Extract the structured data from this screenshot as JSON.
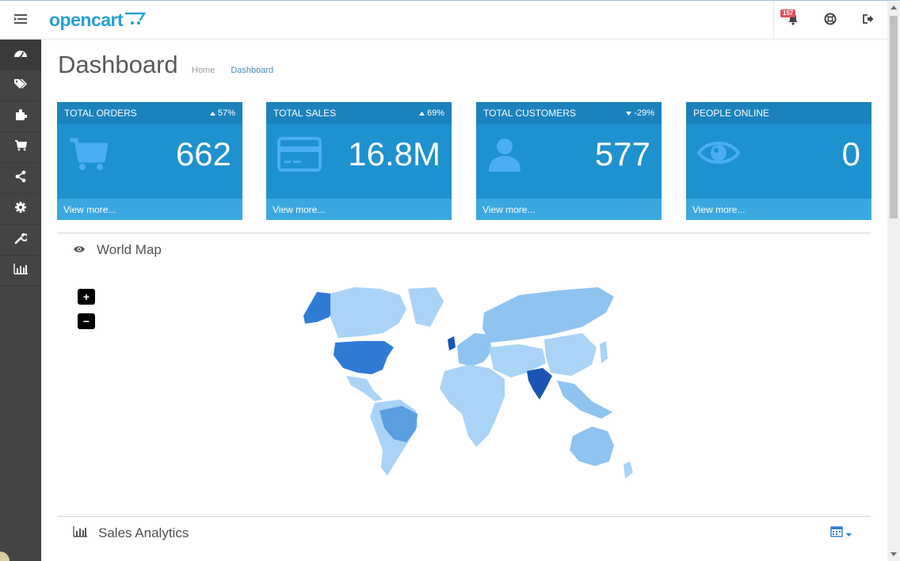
{
  "header": {
    "logo_text": "opencart",
    "notification_count": "157",
    "icons": [
      "menu-toggle-icon",
      "bell-icon",
      "help-lifebuoy-icon",
      "logout-icon"
    ]
  },
  "sidebar": {
    "items": [
      {
        "name": "dashboard",
        "icon": "dashboard-icon"
      },
      {
        "name": "catalog",
        "icon": "tags-icon"
      },
      {
        "name": "extensions",
        "icon": "puzzle-icon"
      },
      {
        "name": "sales",
        "icon": "cart-icon"
      },
      {
        "name": "marketing",
        "icon": "share-icon"
      },
      {
        "name": "system",
        "icon": "gear-icon"
      },
      {
        "name": "tools",
        "icon": "wrench-icon"
      },
      {
        "name": "reports",
        "icon": "bar-chart-icon"
      }
    ]
  },
  "page": {
    "title": "Dashboard",
    "breadcrumb": [
      "Home",
      "Dashboard"
    ]
  },
  "tiles": [
    {
      "title": "TOTAL ORDERS",
      "change": "57%",
      "direction": "up",
      "value": "662",
      "footer": "View more...",
      "icon": "cart-icon"
    },
    {
      "title": "TOTAL SALES",
      "change": "69%",
      "direction": "up",
      "value": "16.8M",
      "footer": "View more...",
      "icon": "credit-card-icon"
    },
    {
      "title": "TOTAL CUSTOMERS",
      "change": "-29%",
      "direction": "down",
      "value": "577",
      "footer": "View more...",
      "icon": "user-icon"
    },
    {
      "title": "PEOPLE ONLINE",
      "change": "",
      "direction": "",
      "value": "0",
      "footer": "View more...",
      "icon": "eye-icon"
    }
  ],
  "world_map": {
    "title": "World Map",
    "zoom_in": "+",
    "zoom_out": "−"
  },
  "sales_analytics": {
    "title": "Sales Analytics"
  },
  "colors": {
    "tile_bg": "#1e91cf",
    "tile_head": "#1a82bc",
    "tile_foot": "#3aa7e0",
    "sidebar": "#444444",
    "map_light": "#a9d3f7",
    "map_mid": "#8fc3f0",
    "map_dark": "#2f7bd6",
    "map_darkest": "#1a55b5"
  }
}
